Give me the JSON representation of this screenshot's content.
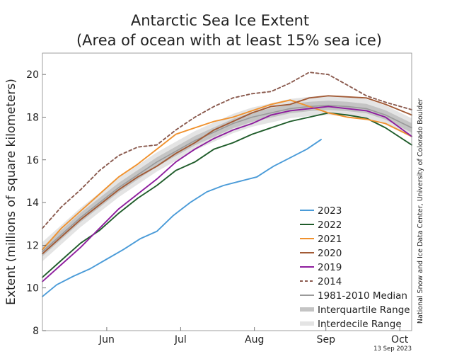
{
  "chart_data": {
    "type": "line",
    "title": "Antarctic Sea Ice Extent",
    "subtitle": "(Area of ocean with at least 15% sea ice)",
    "xlabel": "",
    "ylabel": "Extent (millions of square kilometers)",
    "ylim": [
      8,
      21
    ],
    "xlim": [
      "May 19",
      "Oct 21"
    ],
    "yticks": [
      8,
      10,
      12,
      14,
      16,
      18,
      20
    ],
    "xticks": [
      {
        "label": "Jun",
        "date": "Jun 15"
      },
      {
        "label": "Jul",
        "date": "Jul 16"
      },
      {
        "label": "Aug",
        "date": "Aug 16"
      },
      {
        "label": "Sep",
        "date": "Sep 15"
      },
      {
        "label": "Oct",
        "date": "Oct 16"
      }
    ],
    "grid": false,
    "legend_position": "bottom-right",
    "series": [
      {
        "name": "2023",
        "color": "#4a9bd8",
        "style": "solid",
        "x": [
          "May 19",
          "May 25",
          "Jun 1",
          "Jun 8",
          "Jun 15",
          "Jun 22",
          "Jun 29",
          "Jul 6",
          "Jul 13",
          "Jul 20",
          "Jul 27",
          "Aug 3",
          "Aug 10",
          "Aug 17",
          "Aug 24",
          "Aug 31",
          "Sep 7",
          "Sep 13"
        ],
        "y": [
          9.6,
          10.15,
          10.55,
          10.9,
          11.35,
          11.8,
          12.3,
          12.65,
          13.4,
          14.0,
          14.5,
          14.8,
          15.0,
          15.2,
          15.7,
          16.1,
          16.5,
          16.95
        ]
      },
      {
        "name": "2022",
        "color": "#1f5c2a",
        "style": "solid",
        "x": [
          "May 19",
          "May 27",
          "Jun 4",
          "Jun 12",
          "Jun 20",
          "Jun 28",
          "Jul 6",
          "Jul 14",
          "Jul 22",
          "Jul 30",
          "Aug 7",
          "Aug 15",
          "Aug 23",
          "Aug 31",
          "Sep 8",
          "Sep 16",
          "Sep 24",
          "Oct 2",
          "Oct 10",
          "Oct 21"
        ],
        "y": [
          10.5,
          11.3,
          12.1,
          12.7,
          13.5,
          14.2,
          14.8,
          15.5,
          15.9,
          16.5,
          16.8,
          17.2,
          17.5,
          17.8,
          18.0,
          18.2,
          18.1,
          17.95,
          17.5,
          16.7
        ]
      },
      {
        "name": "2021",
        "color": "#f0912d",
        "style": "solid",
        "x": [
          "May 19",
          "May 27",
          "Jun 4",
          "Jun 12",
          "Jun 20",
          "Jun 28",
          "Jul 6",
          "Jul 14",
          "Jul 22",
          "Jul 30",
          "Aug 7",
          "Aug 15",
          "Aug 23",
          "Aug 31",
          "Sep 8",
          "Sep 16",
          "Sep 24",
          "Oct 2",
          "Oct 10",
          "Oct 21"
        ],
        "y": [
          11.8,
          12.8,
          13.6,
          14.4,
          15.2,
          15.8,
          16.5,
          17.2,
          17.5,
          17.8,
          18.0,
          18.3,
          18.6,
          18.8,
          18.5,
          18.2,
          18.0,
          17.9,
          17.7,
          17.1
        ]
      },
      {
        "name": "2020",
        "color": "#a25a35",
        "style": "solid",
        "x": [
          "May 19",
          "May 27",
          "Jun 4",
          "Jun 12",
          "Jun 20",
          "Jun 28",
          "Jul 6",
          "Jul 14",
          "Jul 22",
          "Jul 30",
          "Aug 7",
          "Aug 15",
          "Aug 23",
          "Aug 31",
          "Sep 8",
          "Sep 16",
          "Sep 24",
          "Oct 2",
          "Oct 10",
          "Oct 21"
        ],
        "y": [
          11.6,
          12.4,
          13.2,
          13.9,
          14.6,
          15.2,
          15.7,
          16.3,
          16.8,
          17.4,
          17.8,
          18.2,
          18.5,
          18.6,
          18.9,
          19.0,
          18.95,
          18.9,
          18.6,
          18.1
        ]
      },
      {
        "name": "2019",
        "color": "#8e1d9e",
        "style": "solid",
        "x": [
          "May 19",
          "May 27",
          "Jun 4",
          "Jun 12",
          "Jun 20",
          "Jun 28",
          "Jul 6",
          "Jul 14",
          "Jul 22",
          "Jul 30",
          "Aug 7",
          "Aug 15",
          "Aug 23",
          "Aug 31",
          "Sep 8",
          "Sep 16",
          "Sep 24",
          "Oct 2",
          "Oct 10",
          "Oct 21"
        ],
        "y": [
          10.3,
          11.1,
          11.9,
          12.8,
          13.7,
          14.4,
          15.1,
          15.9,
          16.5,
          17.0,
          17.4,
          17.7,
          18.1,
          18.3,
          18.4,
          18.5,
          18.4,
          18.3,
          18.0,
          17.1
        ]
      },
      {
        "name": "2014",
        "color": "#8a5a4e",
        "style": "dashed",
        "x": [
          "May 19",
          "May 27",
          "Jun 4",
          "Jun 12",
          "Jun 20",
          "Jun 28",
          "Jul 6",
          "Jul 14",
          "Jul 22",
          "Jul 30",
          "Aug 7",
          "Aug 15",
          "Aug 23",
          "Aug 31",
          "Sep 8",
          "Sep 16",
          "Sep 24",
          "Oct 2",
          "Oct 10",
          "Oct 21"
        ],
        "y": [
          12.8,
          13.8,
          14.6,
          15.5,
          16.2,
          16.6,
          16.7,
          17.4,
          18.0,
          18.5,
          18.9,
          19.1,
          19.2,
          19.6,
          20.1,
          20.0,
          19.5,
          19.0,
          18.7,
          18.35
        ]
      },
      {
        "name": "1981-2010 Median",
        "color": "#9a9a9a",
        "style": "solid",
        "x": [
          "May 19",
          "May 27",
          "Jun 4",
          "Jun 12",
          "Jun 20",
          "Jun 28",
          "Jul 6",
          "Jul 14",
          "Jul 22",
          "Jul 30",
          "Aug 7",
          "Aug 15",
          "Aug 23",
          "Aug 31",
          "Sep 8",
          "Sep 16",
          "Sep 24",
          "Oct 2",
          "Oct 10",
          "Oct 21"
        ],
        "y": [
          11.7,
          12.5,
          13.3,
          14.0,
          14.7,
          15.3,
          15.9,
          16.4,
          16.9,
          17.3,
          17.7,
          18.0,
          18.2,
          18.4,
          18.5,
          18.55,
          18.5,
          18.4,
          18.1,
          17.5
        ]
      }
    ],
    "bands": [
      {
        "name": "Interquartile Range",
        "color": "#c4c4c4",
        "halfwidth": 0.22
      },
      {
        "name": "Interdecile Range",
        "color": "#e4e4e4",
        "halfwidth": 0.45
      }
    ],
    "annotations": {
      "credit": "National Snow and Ice Data Center, University of Colorado Boulder",
      "date": "13 Sep 2023"
    }
  }
}
